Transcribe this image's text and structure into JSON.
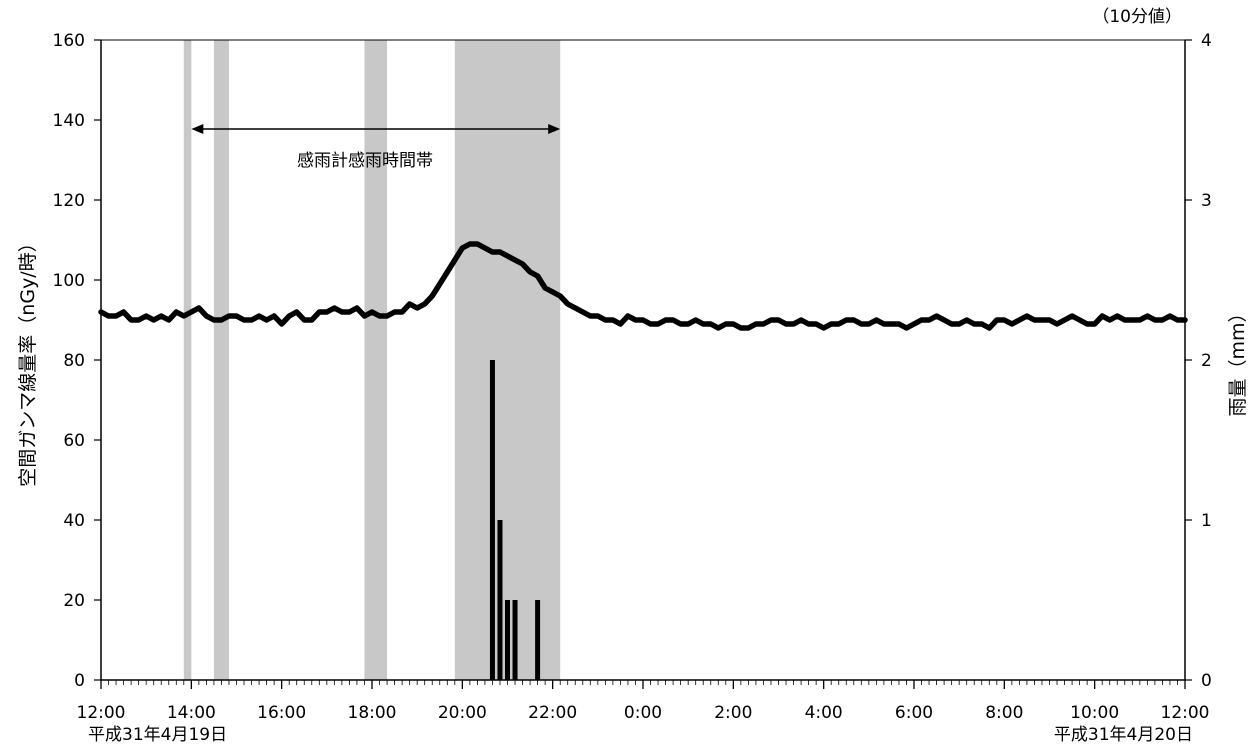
{
  "chart_data": {
    "type": "line",
    "unit_note": "（10分値）",
    "ylabel_left": "空間ガンマ線量率（nGy/時）",
    "ylabel_right": "雨量（mm）",
    "ylim_left": [
      0,
      160
    ],
    "ylim_right": [
      0,
      4
    ],
    "yticks_left": [
      "0",
      "20",
      "40",
      "60",
      "80",
      "100",
      "120",
      "140",
      "160"
    ],
    "yticks_right": [
      "0",
      "1",
      "2",
      "3",
      "4"
    ],
    "x_range_hours": [
      12,
      36
    ],
    "xticks": [
      "12:00",
      "14:00",
      "16:00",
      "18:00",
      "20:00",
      "22:00",
      "0:00",
      "2:00",
      "4:00",
      "6:00",
      "8:00",
      "10:00",
      "12:00"
    ],
    "date_left": "平成31年4月19日",
    "date_right": "平成31年4月20日",
    "annotation": "感雨計感雨時間帯",
    "grid": false,
    "rain_sensing_periods": [
      {
        "start": "13:50",
        "end": "14:00"
      },
      {
        "start": "14:30",
        "end": "14:50"
      },
      {
        "start": "17:50",
        "end": "18:20"
      },
      {
        "start": "19:50",
        "end": "22:10"
      }
    ],
    "annotation_arrow": {
      "start": "14:00",
      "end": "22:10"
    },
    "series": [
      {
        "role": "dose_rate_line",
        "unit": "nGy/時",
        "color": "#000000",
        "start": "12:00",
        "interval_min": 10,
        "values": [
          92,
          91,
          91,
          92,
          90,
          90,
          91,
          90,
          91,
          90,
          92,
          91,
          92,
          93,
          91,
          90,
          90,
          91,
          91,
          90,
          90,
          91,
          90,
          91,
          89,
          91,
          92,
          90,
          90,
          92,
          92,
          93,
          92,
          92,
          93,
          91,
          92,
          91,
          91,
          92,
          92,
          94,
          93,
          94,
          96,
          99,
          102,
          105,
          108,
          109,
          109,
          108,
          107,
          107,
          106,
          105,
          104,
          102,
          101,
          98,
          97,
          96,
          94,
          93,
          92,
          91,
          91,
          90,
          90,
          89,
          91,
          90,
          90,
          89,
          89,
          90,
          90,
          89,
          89,
          90,
          89,
          89,
          88,
          89,
          89,
          88,
          88,
          89,
          89,
          90,
          90,
          89,
          89,
          90,
          89,
          89,
          88,
          89,
          89,
          90,
          90,
          89,
          89,
          90,
          89,
          89,
          89,
          88,
          89,
          90,
          90,
          91,
          90,
          89,
          89,
          90,
          89,
          89,
          88,
          90,
          90,
          89,
          90,
          91,
          90,
          90,
          90,
          89,
          90,
          91,
          90,
          89,
          89,
          91,
          90,
          91,
          90,
          90,
          90,
          91,
          90,
          90,
          91,
          90,
          90
        ]
      },
      {
        "role": "rainfall_bars",
        "unit": "mm",
        "color": "#000000",
        "points": [
          {
            "time": "20:40",
            "value": 2.0
          },
          {
            "time": "20:50",
            "value": 1.0
          },
          {
            "time": "21:00",
            "value": 0.5
          },
          {
            "time": "21:10",
            "value": 0.5
          },
          {
            "time": "21:40",
            "value": 0.5
          }
        ]
      }
    ]
  }
}
